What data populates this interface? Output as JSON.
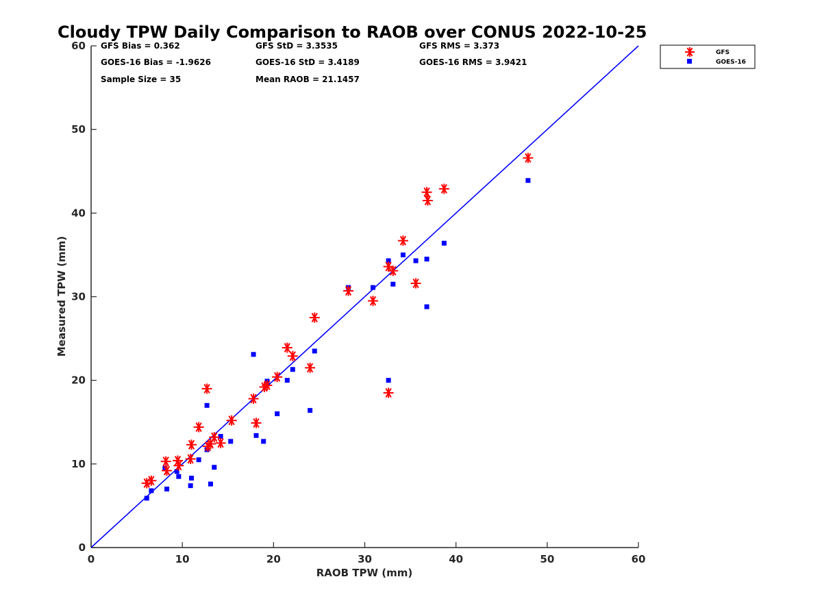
{
  "chart_data": {
    "type": "scatter",
    "title": "Cloudy TPW Daily Comparison to RAOB over CONUS 2022-10-25",
    "xlabel": "RAOB TPW (mm)",
    "ylabel": "Measured TPW (mm)",
    "xlim": [
      0,
      60
    ],
    "ylim": [
      0,
      60
    ],
    "xticks": [
      "0",
      "10",
      "20",
      "30",
      "40",
      "50",
      "60"
    ],
    "yticks": [
      "0",
      "10",
      "20",
      "30",
      "40",
      "50",
      "60"
    ],
    "reference_line": "1:1",
    "legend_position": "outside-top-right",
    "stats": {
      "gfs_bias": "GFS Bias = 0.362",
      "gfs_std": "GFS StD = 3.3535",
      "gfs_rms": "GFS RMS = 3.373",
      "goes_bias": "GOES-16 Bias = -1.9626",
      "goes_std": "GOES-16 StD = 3.4189",
      "goes_rms": "GOES-16 RMS = 3.9421",
      "sample_size": "Sample Size = 35",
      "mean_raob": "Mean RAOB = 21.1457"
    },
    "series": [
      {
        "name": "GFS",
        "marker": "asterisk",
        "color": "#ff0000",
        "points": [
          [
            6.1,
            7.7
          ],
          [
            6.6,
            8.0
          ],
          [
            8.2,
            10.3
          ],
          [
            8.3,
            9.2
          ],
          [
            9.5,
            10.4
          ],
          [
            9.6,
            9.8
          ],
          [
            10.9,
            10.6
          ],
          [
            11.0,
            12.3
          ],
          [
            11.8,
            14.4
          ],
          [
            12.7,
            19.0
          ],
          [
            12.8,
            12.1
          ],
          [
            13.1,
            12.4
          ],
          [
            13.5,
            13.2
          ],
          [
            14.2,
            12.5
          ],
          [
            15.4,
            15.2
          ],
          [
            17.8,
            17.8
          ],
          [
            18.1,
            14.9
          ],
          [
            19.0,
            19.2
          ],
          [
            19.3,
            19.4
          ],
          [
            20.4,
            20.4
          ],
          [
            21.5,
            23.9
          ],
          [
            22.1,
            22.9
          ],
          [
            24.0,
            21.5
          ],
          [
            24.5,
            27.5
          ],
          [
            28.2,
            30.7
          ],
          [
            30.9,
            29.5
          ],
          [
            32.6,
            33.6
          ],
          [
            32.6,
            18.5
          ],
          [
            33.1,
            33.1
          ],
          [
            34.2,
            36.7
          ],
          [
            35.6,
            31.6
          ],
          [
            36.8,
            42.5
          ],
          [
            36.9,
            41.5
          ],
          [
            38.7,
            42.9
          ],
          [
            47.9,
            46.6
          ]
        ]
      },
      {
        "name": "GOES-16",
        "marker": "square",
        "color": "#0000ff",
        "points": [
          [
            6.1,
            5.9
          ],
          [
            6.6,
            6.8
          ],
          [
            8.1,
            9.5
          ],
          [
            8.3,
            7.0
          ],
          [
            9.4,
            9.1
          ],
          [
            9.6,
            8.5
          ],
          [
            10.9,
            7.4
          ],
          [
            11.0,
            8.3
          ],
          [
            11.8,
            10.5
          ],
          [
            12.7,
            17.0
          ],
          [
            12.7,
            11.7
          ],
          [
            13.1,
            7.6
          ],
          [
            13.5,
            9.6
          ],
          [
            14.2,
            13.3
          ],
          [
            15.3,
            12.7
          ],
          [
            17.8,
            23.1
          ],
          [
            18.1,
            13.4
          ],
          [
            18.9,
            12.7
          ],
          [
            19.3,
            19.9
          ],
          [
            20.4,
            16.0
          ],
          [
            21.5,
            20.0
          ],
          [
            22.1,
            21.3
          ],
          [
            24.0,
            16.4
          ],
          [
            24.5,
            23.5
          ],
          [
            28.2,
            31.1
          ],
          [
            30.9,
            31.1
          ],
          [
            32.6,
            34.3
          ],
          [
            32.6,
            20.0
          ],
          [
            33.1,
            31.5
          ],
          [
            34.2,
            35.0
          ],
          [
            35.6,
            34.3
          ],
          [
            36.8,
            34.5
          ],
          [
            36.8,
            28.8
          ],
          [
            38.7,
            36.4
          ],
          [
            47.9,
            43.9
          ]
        ]
      }
    ]
  }
}
